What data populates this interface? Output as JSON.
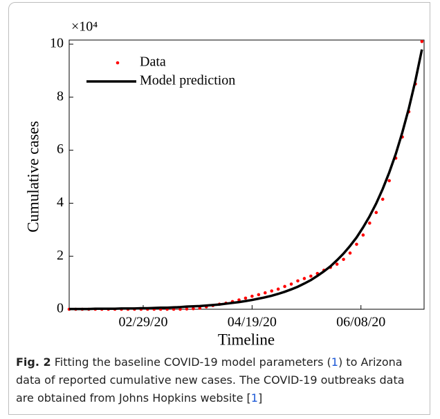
{
  "chart_data": {
    "type": "line",
    "y_multiplier": "×10⁴",
    "xlabel": "Timeline",
    "ylabel": "Cumulative cases",
    "xlim": [
      0,
      163
    ],
    "ylim": [
      0,
      10
    ],
    "xticks": [
      {
        "value": 34,
        "label": "02/29/20"
      },
      {
        "value": 84,
        "label": "04/19/20"
      },
      {
        "value": 134,
        "label": "06/08/20"
      }
    ],
    "yticks": [
      0,
      2,
      4,
      6,
      8,
      10
    ],
    "legend": "upper left",
    "x": [
      0,
      3,
      6,
      9,
      12,
      15,
      18,
      21,
      24,
      27,
      30,
      33,
      36,
      39,
      42,
      45,
      48,
      51,
      54,
      57,
      60,
      63,
      66,
      69,
      72,
      75,
      78,
      81,
      84,
      87,
      90,
      93,
      96,
      99,
      102,
      105,
      108,
      111,
      114,
      117,
      120,
      123,
      126,
      129,
      132,
      135,
      138,
      141,
      144,
      147,
      150,
      153,
      156,
      159,
      162
    ],
    "series": [
      {
        "name": "Data",
        "color": "#ff0000",
        "mode": "markers",
        "values": [
          0,
          0,
          0,
          0,
          0,
          0,
          0,
          0,
          0,
          0,
          0,
          0,
          0,
          0,
          0,
          0,
          0,
          0,
          0.01,
          0.02,
          0.04,
          0.09,
          0.14,
          0.19,
          0.23,
          0.29,
          0.35,
          0.42,
          0.49,
          0.55,
          0.62,
          0.69,
          0.76,
          0.86,
          0.95,
          1.07,
          1.16,
          1.25,
          1.35,
          1.47,
          1.58,
          1.7,
          1.88,
          2.12,
          2.45,
          2.8,
          3.25,
          3.65,
          4.15,
          4.85,
          5.7,
          6.5,
          7.45,
          8.5,
          10.1
        ]
      },
      {
        "name": "Model prediction",
        "color": "#000000",
        "mode": "lines",
        "values": [
          0.01,
          0.01,
          0.01,
          0.01,
          0.02,
          0.02,
          0.02,
          0.02,
          0.03,
          0.03,
          0.03,
          0.04,
          0.04,
          0.05,
          0.06,
          0.06,
          0.07,
          0.08,
          0.1,
          0.11,
          0.12,
          0.14,
          0.16,
          0.18,
          0.21,
          0.24,
          0.27,
          0.31,
          0.35,
          0.4,
          0.45,
          0.51,
          0.58,
          0.66,
          0.75,
          0.85,
          0.97,
          1.1,
          1.26,
          1.43,
          1.62,
          1.85,
          2.1,
          2.39,
          2.71,
          3.09,
          3.51,
          3.99,
          4.54,
          5.16,
          5.86,
          6.67,
          7.58,
          8.62,
          9.8
        ]
      }
    ]
  },
  "caption": {
    "label": "Fig. 2",
    "text1": "Fitting the baseline COVID-19 model parameters (",
    "ref1": "1",
    "text2": ") to Arizona data of reported cumulative new cases. The COVID-19 outbreaks data are obtained from Johns Hopkins website [",
    "ref2": "1",
    "text3": "]"
  }
}
